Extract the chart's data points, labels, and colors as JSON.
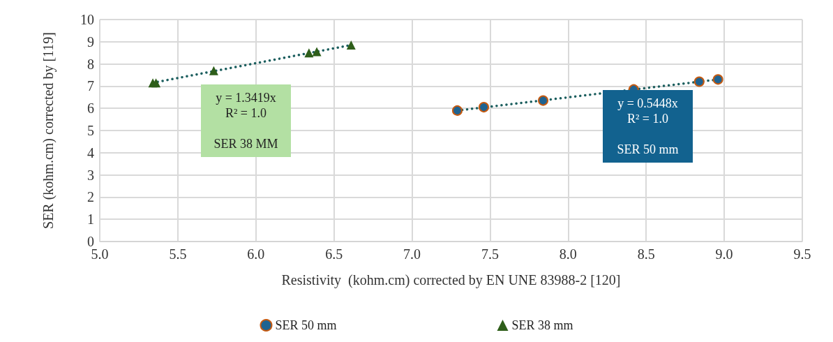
{
  "chart_data": {
    "type": "scatter",
    "xlabel": "Resistivity  (kohm.cm) corrected by EN UNE 83988-2 [120]",
    "ylabel": "SER (kohm.cm) corrected by [119]",
    "xlim": [
      5.0,
      9.5
    ],
    "xticks": [
      {
        "value": 5,
        "label": "5.0"
      },
      {
        "value": 5.5,
        "label": "5.5"
      },
      {
        "value": 6,
        "label": "6.0"
      },
      {
        "value": 6.5,
        "label": "6.5"
      },
      {
        "value": 7,
        "label": "7.0"
      },
      {
        "value": 7.5,
        "label": "7.5"
      },
      {
        "value": 8,
        "label": "8.0"
      },
      {
        "value": 8.5,
        "label": "8.5"
      },
      {
        "value": 9,
        "label": "9.0"
      },
      {
        "value": 9.5,
        "label": "9.5"
      }
    ],
    "ylim": [
      0,
      10
    ],
    "yticks": [
      0,
      1,
      2,
      3,
      4,
      5,
      6,
      7,
      8,
      9,
      10
    ],
    "grid": true,
    "legend": "bottom",
    "series": [
      {
        "name": "SER 50 mm",
        "color": "#1f6391",
        "marker": "circle",
        "x": [
          7.29,
          7.46,
          7.84,
          8.42,
          8.84,
          8.96
        ],
        "values": [
          5.9,
          6.05,
          6.35,
          6.85,
          7.2,
          7.3
        ]
      },
      {
        "name": "SER 38 mm",
        "color": "#2e5e1a",
        "marker": "triangle",
        "x": [
          5.34,
          5.36,
          5.73,
          6.34,
          6.39,
          6.61
        ],
        "values": [
          7.15,
          7.15,
          7.7,
          8.5,
          8.55,
          8.85
        ]
      },
      {
        "type": "line",
        "color": "#1b5e5e",
        "marker": "none",
        "line_style": "dotted",
        "x": [
          7.29,
          8.96
        ],
        "values": [
          5.9,
          7.3
        ]
      },
      {
        "type": "line",
        "color": "#1b5e5e",
        "marker": "none",
        "line_style": "dotted",
        "x": [
          5.34,
          6.61
        ],
        "values": [
          7.15,
          8.85
        ]
      }
    ],
    "annotations": [
      "y = 1.3419x\nR² = 1.0\n\nSER 38 MM",
      "y = 0.5448x\nR² = 1.0\n\nSER 50 mm"
    ]
  }
}
